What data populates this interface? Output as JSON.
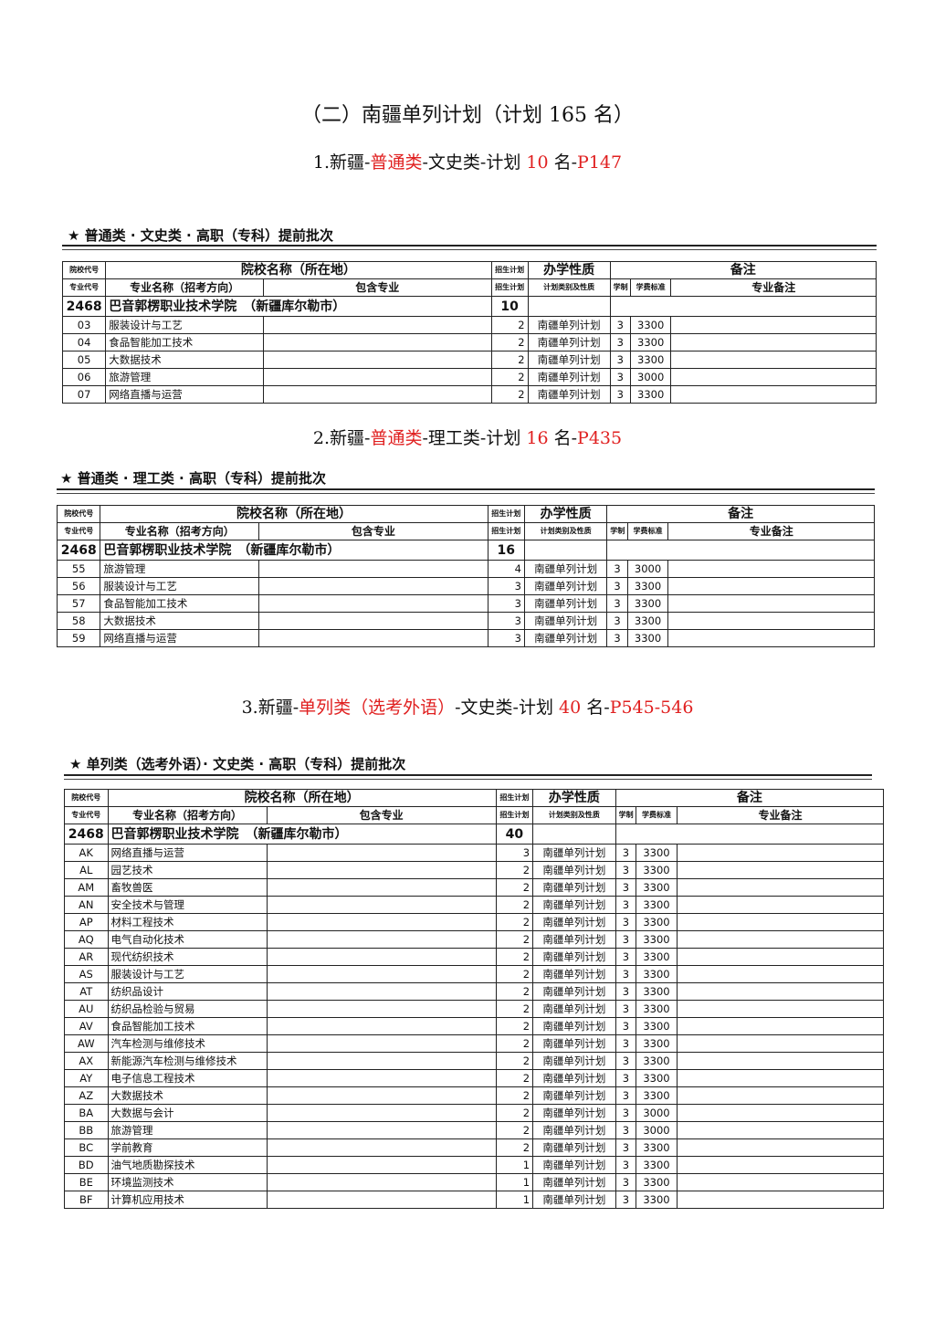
{
  "title": "（二）南疆单列计划（计划 165 名）",
  "colors": {
    "highlight": "#e02020",
    "text": "#111111"
  },
  "headers": {
    "school_code": "院校代号",
    "school_name": "院校名称（所在地）",
    "plan": "招生计划",
    "nature": "办学性质",
    "remarks": "备注",
    "major_code": "专业代号",
    "major_name": "专业名称（招考方向）",
    "included": "包含专业",
    "plan2": "招生计划",
    "plan_type": "计划类别及性质",
    "years": "学制",
    "fee": "学费标准",
    "major_remark": "专业备注"
  },
  "sections": [
    {
      "subtitle": [
        {
          "text": "1.新疆-",
          "red": false
        },
        {
          "text": "普通类",
          "red": true
        },
        {
          "text": "-文史类-计划 ",
          "red": false
        },
        {
          "text": "10",
          "red": true
        },
        {
          "text": " 名-",
          "red": false
        },
        {
          "text": "P147",
          "red": true
        }
      ],
      "batch": "★  普通类 · 文史类  ·  高职（专科）提前批次",
      "school": {
        "code": "2468",
        "name": "巴音郭楞职业技术学院　（新疆库尔勒市）",
        "plan": "10"
      },
      "rows": [
        [
          "03",
          "服装设计与工艺",
          "2",
          "南疆单列计划",
          "3",
          "3300"
        ],
        [
          "04",
          "食品智能加工技术",
          "2",
          "南疆单列计划",
          "3",
          "3300"
        ],
        [
          "05",
          "大数据技术",
          "2",
          "南疆单列计划",
          "3",
          "3300"
        ],
        [
          "06",
          "旅游管理",
          "2",
          "南疆单列计划",
          "3",
          "3000"
        ],
        [
          "07",
          "网络直播与运营",
          "2",
          "南疆单列计划",
          "3",
          "3300"
        ]
      ]
    },
    {
      "subtitle": [
        {
          "text": "2.新疆-",
          "red": false
        },
        {
          "text": "普通类",
          "red": true
        },
        {
          "text": "-理工类-计划 ",
          "red": false
        },
        {
          "text": "16",
          "red": true
        },
        {
          "text": " 名-",
          "red": false
        },
        {
          "text": "P435",
          "red": true
        }
      ],
      "batch": "★  普通类 · 理工类  ·  高职（专科）提前批次",
      "school": {
        "code": "2468",
        "name": "巴音郭楞职业技术学院　（新疆库尔勒市）",
        "plan": "16"
      },
      "rows": [
        [
          "55",
          "旅游管理",
          "4",
          "南疆单列计划",
          "3",
          "3000"
        ],
        [
          "56",
          "服装设计与工艺",
          "3",
          "南疆单列计划",
          "3",
          "3300"
        ],
        [
          "57",
          "食品智能加工技术",
          "3",
          "南疆单列计划",
          "3",
          "3300"
        ],
        [
          "58",
          "大数据技术",
          "3",
          "南疆单列计划",
          "3",
          "3300"
        ],
        [
          "59",
          "网络直播与运营",
          "3",
          "南疆单列计划",
          "3",
          "3300"
        ]
      ]
    },
    {
      "subtitle": [
        {
          "text": "3.新疆-",
          "red": false
        },
        {
          "text": "单列类（选考外语）",
          "red": true
        },
        {
          "text": "-文史类-计划 ",
          "red": false
        },
        {
          "text": "40",
          "red": true
        },
        {
          "text": " 名-",
          "red": false
        },
        {
          "text": "P545-546",
          "red": true
        }
      ],
      "batch": "★  单列类（选考外语）· 文史类  ·  高职（专科）提前批次",
      "school": {
        "code": "2468",
        "name": "巴音郭楞职业技术学院　（新疆库尔勒市）",
        "plan": "40"
      },
      "rows": [
        [
          "AK",
          "网络直播与运营",
          "3",
          "南疆单列计划",
          "3",
          "3300"
        ],
        [
          "AL",
          "园艺技术",
          "2",
          "南疆单列计划",
          "3",
          "3300"
        ],
        [
          "AM",
          "畜牧兽医",
          "2",
          "南疆单列计划",
          "3",
          "3300"
        ],
        [
          "AN",
          "安全技术与管理",
          "2",
          "南疆单列计划",
          "3",
          "3300"
        ],
        [
          "AP",
          "材料工程技术",
          "2",
          "南疆单列计划",
          "3",
          "3300"
        ],
        [
          "AQ",
          "电气自动化技术",
          "2",
          "南疆单列计划",
          "3",
          "3300"
        ],
        [
          "AR",
          "现代纺织技术",
          "2",
          "南疆单列计划",
          "3",
          "3300"
        ],
        [
          "AS",
          "服装设计与工艺",
          "2",
          "南疆单列计划",
          "3",
          "3300"
        ],
        [
          "AT",
          "纺织品设计",
          "2",
          "南疆单列计划",
          "3",
          "3300"
        ],
        [
          "AU",
          "纺织品检验与贸易",
          "2",
          "南疆单列计划",
          "3",
          "3300"
        ],
        [
          "AV",
          "食品智能加工技术",
          "2",
          "南疆单列计划",
          "3",
          "3300"
        ],
        [
          "AW",
          "汽车检测与维修技术",
          "2",
          "南疆单列计划",
          "3",
          "3300"
        ],
        [
          "AX",
          "新能源汽车检测与维修技术",
          "2",
          "南疆单列计划",
          "3",
          "3300"
        ],
        [
          "AY",
          "电子信息工程技术",
          "2",
          "南疆单列计划",
          "3",
          "3300"
        ],
        [
          "AZ",
          "大数据技术",
          "2",
          "南疆单列计划",
          "3",
          "3300"
        ],
        [
          "BA",
          "大数据与会计",
          "2",
          "南疆单列计划",
          "3",
          "3000"
        ],
        [
          "BB",
          "旅游管理",
          "2",
          "南疆单列计划",
          "3",
          "3000"
        ],
        [
          "BC",
          "学前教育",
          "2",
          "南疆单列计划",
          "3",
          "3300"
        ],
        [
          "BD",
          "油气地质勘探技术",
          "1",
          "南疆单列计划",
          "3",
          "3300"
        ],
        [
          "BE",
          "环境监测技术",
          "1",
          "南疆单列计划",
          "3",
          "3300"
        ],
        [
          "BF",
          "计算机应用技术",
          "1",
          "南疆单列计划",
          "3",
          "3300"
        ]
      ]
    }
  ]
}
